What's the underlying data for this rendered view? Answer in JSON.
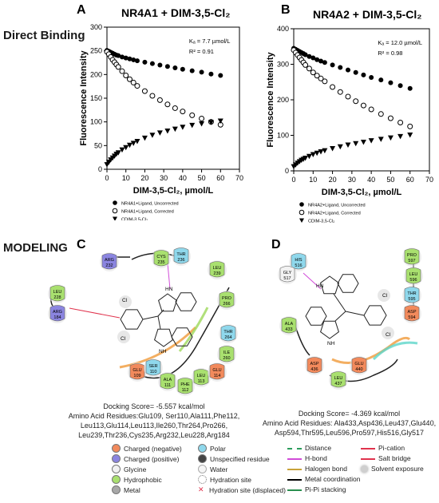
{
  "direct_binding_label": "Direct Binding",
  "modeling_label": "MODELING",
  "panel_letters": [
    "A",
    "B",
    "C",
    "D"
  ],
  "chart_data": [
    {
      "type": "scatter",
      "panel": "A",
      "title": "NR4A1 +   DIM-3,5-Cl₂",
      "xlabel": "DIM-3,5-Cl₂, µmol/L",
      "ylabel": "Fluorescence Intensity",
      "xlim": [
        0,
        70
      ],
      "ylim": [
        0,
        300
      ],
      "xticks": [
        0,
        10,
        20,
        30,
        40,
        50,
        60,
        70
      ],
      "yticks": [
        0,
        50,
        100,
        150,
        200,
        250,
        300
      ],
      "kd_text": "Kₐ = 7.7 µmol/L",
      "r2_text": "R² = 0.91",
      "x": [
        0,
        1,
        2,
        3,
        4,
        5,
        6,
        8,
        10,
        12,
        14,
        16,
        20,
        24,
        28,
        32,
        36,
        40,
        45,
        50,
        55,
        60
      ],
      "series": [
        {
          "name": "NR4A1+Ligand, Uncorrected",
          "marker": "filled-circle",
          "values": [
            251,
            249,
            247,
            245,
            243,
            241,
            240,
            237,
            235,
            233,
            231,
            229,
            226,
            223,
            220,
            217,
            214,
            211,
            208,
            205,
            201,
            198
          ]
        },
        {
          "name": "NR4A1+Ligand, Corrected",
          "marker": "open-circle",
          "values": [
            248,
            243,
            237,
            231,
            226,
            221,
            216,
            207,
            198,
            190,
            183,
            176,
            165,
            155,
            146,
            137,
            129,
            122,
            114,
            107,
            100,
            94
          ]
        },
        {
          "name": "CDIM-3,5-Cl₂",
          "marker": "filled-triangle-down",
          "values": [
            10,
            15,
            20,
            24,
            28,
            32,
            35,
            41,
            46,
            51,
            55,
            59,
            66,
            72,
            77,
            81,
            85,
            89,
            93,
            96,
            99,
            102
          ]
        }
      ]
    },
    {
      "type": "scatter",
      "panel": "B",
      "title": "NR4A2 +   DIM-3,5-Cl₂",
      "xlabel": "DIM-3,5-Cl₂, µmol/L",
      "ylabel": "Fluorescence Intensity",
      "xlim": [
        0,
        70
      ],
      "ylim": [
        0,
        400
      ],
      "xticks": [
        0,
        10,
        20,
        30,
        40,
        50,
        60,
        70
      ],
      "yticks": [
        0,
        100,
        200,
        300,
        400
      ],
      "kd_text": "Kₐ = 12.0 µmol/L",
      "r2_text": "R² = 0.98",
      "x": [
        0,
        1,
        2,
        3,
        4,
        5,
        6,
        8,
        10,
        12,
        14,
        16,
        20,
        24,
        28,
        32,
        36,
        40,
        45,
        50,
        55,
        60
      ],
      "series": [
        {
          "name": "NR4A2+Ligand, Uncorrected",
          "marker": "filled-circle",
          "values": [
            345,
            342,
            339,
            336,
            333,
            330,
            327,
            322,
            318,
            313,
            309,
            305,
            298,
            291,
            284,
            277,
            270,
            263,
            256,
            248,
            240,
            232
          ]
        },
        {
          "name": "NR4A2+Ligand, Corrected",
          "marker": "open-circle",
          "values": [
            340,
            333,
            326,
            319,
            312,
            305,
            298,
            288,
            277,
            268,
            260,
            252,
            236,
            222,
            209,
            196,
            184,
            173,
            160,
            148,
            136,
            125
          ]
        },
        {
          "name": "CDIM-3,5-Cl₂",
          "marker": "filled-triangle-down",
          "values": [
            12,
            17,
            22,
            26,
            30,
            33,
            36,
            41,
            46,
            50,
            54,
            57,
            63,
            68,
            73,
            77,
            81,
            85,
            89,
            93,
            97,
            101
          ]
        }
      ]
    }
  ],
  "modeling": {
    "C": {
      "residues": [
        {
          "label": "ARG\n232",
          "kind": "charged-positive"
        },
        {
          "label": "CYS\n235",
          "kind": "hydrophobic"
        },
        {
          "label": "THR\n236",
          "kind": "polar"
        },
        {
          "label": "LEU\n239",
          "kind": "hydrophobic"
        },
        {
          "label": "LEU\n228",
          "kind": "hydrophobic"
        },
        {
          "label": "ARG\n184",
          "kind": "charged-positive"
        },
        {
          "label": "PRO\n266",
          "kind": "hydrophobic"
        },
        {
          "label": "THR\n264",
          "kind": "polar"
        },
        {
          "label": "ILE\n260",
          "kind": "hydrophobic"
        },
        {
          "label": "GLU\n109",
          "kind": "charged-negative"
        },
        {
          "label": "SER\n110",
          "kind": "polar"
        },
        {
          "label": "ALA\n111",
          "kind": "hydrophobic"
        },
        {
          "label": "PHE\n112",
          "kind": "hydrophobic"
        },
        {
          "label": "LEU\n113",
          "kind": "hydrophobic"
        },
        {
          "label": "GLU\n114",
          "kind": "charged-negative"
        }
      ],
      "score": "Docking Score= -5.557 kcal/mol",
      "amino": "Amino Acid Residues:Glu109, Ser110,Ala111,Phe112,",
      "amino2": "Leu113,Glu114,Leu113,Ile260,Thr264,Pro266,",
      "amino3": "Leu239,Thr236,Cys235,Arg232,Leu228,Arg184"
    },
    "D": {
      "residues": [
        {
          "label": "HIS\n516",
          "kind": "polar"
        },
        {
          "label": "GLY\n517",
          "kind": "glycine"
        },
        {
          "label": "PRO\n597",
          "kind": "hydrophobic"
        },
        {
          "label": "LEU\n596",
          "kind": "hydrophobic"
        },
        {
          "label": "THR\n595",
          "kind": "polar"
        },
        {
          "label": "ASP\n594",
          "kind": "charged-negative"
        },
        {
          "label": "ALA\n433",
          "kind": "hydrophobic"
        },
        {
          "label": "ASP\n436",
          "kind": "charged-negative"
        },
        {
          "label": "LEU\n437",
          "kind": "hydrophobic"
        },
        {
          "label": "GLU\n440",
          "kind": "charged-negative"
        }
      ],
      "score": "Docking Score= -4.369 kcal/mol",
      "amino": "Amino Acid Residues: Ala433,Asp436,Leu437,Glu440,",
      "amino2": "Asp594,Thr595,Leu596,Pro597,His516,Gly517"
    }
  },
  "colors": {
    "charged-negative": "#f28a5c",
    "charged-positive": "#8b85e0",
    "polar": "#8fd8ec",
    "glycine": "#f2f2f2",
    "hydrophobic": "#a9e06f",
    "metal": "#a8a8a8",
    "unspecified": "#444444"
  },
  "interaction_legend": {
    "col1": [
      {
        "label": "Charged (negative)",
        "kind": "charged-negative"
      },
      {
        "label": "Charged (positive)",
        "kind": "charged-positive"
      },
      {
        "label": "Glycine",
        "kind": "glycine"
      },
      {
        "label": "Hydrophobic",
        "kind": "hydrophobic"
      },
      {
        "label": "Metal",
        "kind": "metal"
      }
    ],
    "col2": [
      {
        "label": "Polar",
        "kind": "polar"
      },
      {
        "label": "Unspecified residue",
        "kind": "unspecified"
      },
      {
        "label": "Water",
        "kind": "water"
      },
      {
        "label": "Hydration site",
        "kind": "hydration"
      },
      {
        "label": "Hydration site (displaced)",
        "kind": "displaced"
      }
    ],
    "col3": [
      {
        "label": "Distance",
        "kind": "distance"
      },
      {
        "label": "H-bond",
        "kind": "hbond"
      },
      {
        "label": "Halogen bond",
        "kind": "halogen"
      },
      {
        "label": "Metal coordination",
        "kind": "metalcoord"
      },
      {
        "label": "Pi-Pi stacking",
        "kind": "pipi"
      }
    ],
    "col4": [
      {
        "label": "Pi-cation",
        "kind": "pication"
      },
      {
        "label": "Salt bridge",
        "kind": "saltbridge"
      },
      {
        "label": "Solvent exposure",
        "kind": "solvent"
      }
    ]
  }
}
